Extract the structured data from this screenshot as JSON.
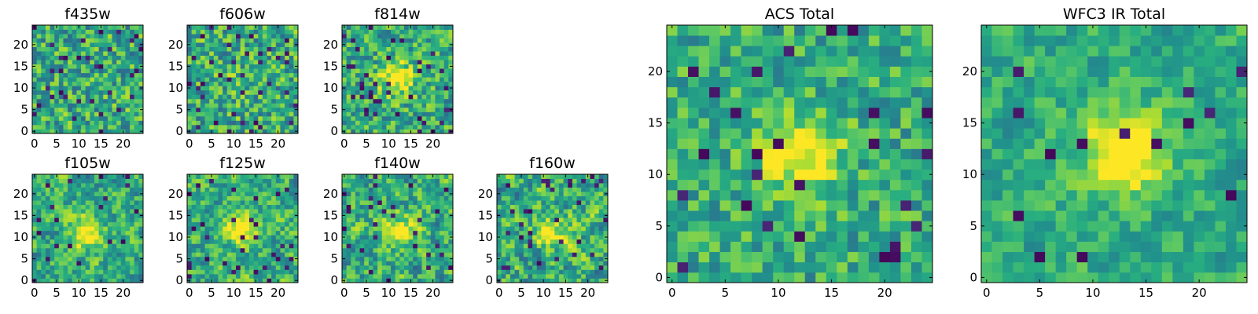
{
  "colormap": "viridis",
  "colors": {
    "low": "#440154",
    "mid": "#21918c",
    "high": "#fde725"
  },
  "chart_data": [
    {
      "type": "heatmap",
      "title": "f435w",
      "size": 25,
      "xticks": [
        0,
        5,
        10,
        15,
        20
      ],
      "yticks": [
        0,
        5,
        10,
        15,
        20
      ],
      "xlim": [
        0,
        25
      ],
      "ylim": [
        0,
        25
      ],
      "source_amplitude": 0.0,
      "noise_level": 0.55,
      "smoothness": 0,
      "dark_fraction": 0.06,
      "seed": 11,
      "center": [
        12,
        12
      ]
    },
    {
      "type": "heatmap",
      "title": "f606w",
      "size": 25,
      "xticks": [
        0,
        5,
        10,
        15,
        20
      ],
      "yticks": [
        0,
        5,
        10,
        15,
        20
      ],
      "xlim": [
        0,
        25
      ],
      "ylim": [
        0,
        25
      ],
      "source_amplitude": 0.08,
      "noise_level": 0.55,
      "smoothness": 0,
      "dark_fraction": 0.06,
      "seed": 23,
      "center": [
        12,
        12
      ]
    },
    {
      "type": "heatmap",
      "title": "f814w",
      "size": 25,
      "xticks": [
        0,
        5,
        10,
        15,
        20
      ],
      "yticks": [
        0,
        5,
        10,
        15,
        20
      ],
      "xlim": [
        0,
        25
      ],
      "ylim": [
        0,
        25
      ],
      "source_amplitude": 0.45,
      "noise_level": 0.5,
      "smoothness": 0,
      "dark_fraction": 0.06,
      "seed": 37,
      "center": [
        12,
        12
      ]
    },
    {
      "type": "heatmap",
      "title": "f105w",
      "size": 25,
      "xticks": [
        0,
        5,
        10,
        15,
        20
      ],
      "yticks": [
        0,
        5,
        10,
        15,
        20
      ],
      "xlim": [
        0,
        25
      ],
      "ylim": [
        0,
        25
      ],
      "source_amplitude": 0.45,
      "noise_level": 0.55,
      "smoothness": 1,
      "dark_fraction": 0.04,
      "seed": 41,
      "center": [
        11,
        12
      ]
    },
    {
      "type": "heatmap",
      "title": "f125w",
      "size": 25,
      "xticks": [
        0,
        5,
        10,
        15,
        20
      ],
      "yticks": [
        0,
        5,
        10,
        15,
        20
      ],
      "xlim": [
        0,
        25
      ],
      "ylim": [
        0,
        25
      ],
      "source_amplitude": 0.45,
      "noise_level": 0.55,
      "smoothness": 1,
      "dark_fraction": 0.04,
      "seed": 53,
      "center": [
        12,
        12
      ]
    },
    {
      "type": "heatmap",
      "title": "f140w",
      "size": 25,
      "xticks": [
        0,
        5,
        10,
        15,
        20
      ],
      "yticks": [
        0,
        5,
        10,
        15,
        20
      ],
      "xlim": [
        0,
        25
      ],
      "ylim": [
        0,
        25
      ],
      "source_amplitude": 0.35,
      "noise_level": 0.6,
      "smoothness": 1,
      "dark_fraction": 0.04,
      "seed": 67,
      "center": [
        12,
        13
      ]
    },
    {
      "type": "heatmap",
      "title": "f160w",
      "size": 25,
      "xticks": [
        0,
        5,
        10,
        15,
        20
      ],
      "yticks": [
        0,
        5,
        10,
        15,
        20
      ],
      "xlim": [
        0,
        25
      ],
      "ylim": [
        0,
        25
      ],
      "source_amplitude": 0.4,
      "noise_level": 0.6,
      "smoothness": 1,
      "dark_fraction": 0.05,
      "seed": 79,
      "center": [
        11,
        12
      ]
    },
    {
      "type": "heatmap",
      "title": "ACS Total",
      "size": 25,
      "xticks": [
        0,
        5,
        10,
        15,
        20
      ],
      "yticks": [
        0,
        5,
        10,
        15,
        20
      ],
      "xlim": [
        0,
        25
      ],
      "ylim": [
        0,
        25
      ],
      "source_amplitude": 0.45,
      "noise_level": 0.42,
      "smoothness": 0,
      "dark_fraction": 0.05,
      "seed": 97,
      "center": [
        12,
        12
      ]
    },
    {
      "type": "heatmap",
      "title": "WFC3 IR Total",
      "size": 25,
      "xticks": [
        0,
        5,
        10,
        15,
        20
      ],
      "yticks": [
        0,
        5,
        10,
        15,
        20
      ],
      "xlim": [
        0,
        25
      ],
      "ylim": [
        0,
        25
      ],
      "source_amplitude": 0.6,
      "noise_level": 0.35,
      "smoothness": 1,
      "dark_fraction": 0.03,
      "seed": 113,
      "center": [
        12,
        13
      ]
    }
  ]
}
